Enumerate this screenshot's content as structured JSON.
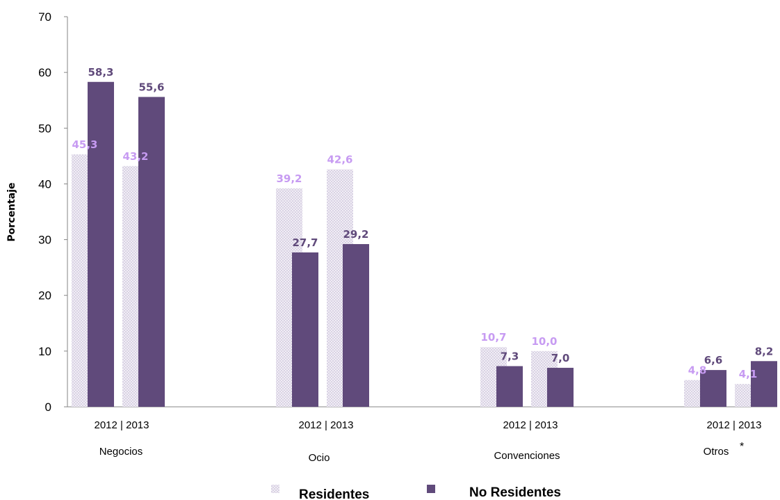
{
  "chart_data": {
    "type": "bar",
    "ylabel": "Porcentaje",
    "ylim": [
      0,
      70
    ],
    "yticks": [
      0,
      10,
      20,
      30,
      40,
      50,
      60,
      70
    ],
    "categories": [
      "Negocios",
      "Ocio",
      "Convenciones",
      "Otros"
    ],
    "category_footnote": {
      "Otros": "*"
    },
    "years": [
      "2012",
      "2013"
    ],
    "year_separator": "|",
    "series": [
      {
        "name": "Residentes",
        "color": "#e6e1ee",
        "label_color": "#c79bf2",
        "values": {
          "2012": [
            45.3,
            39.2,
            10.7,
            4.8
          ],
          "2013": [
            43.2,
            42.6,
            10.0,
            4.1
          ]
        },
        "labels": {
          "2012": [
            "45,3",
            "39,2",
            "10,7",
            "4,8"
          ],
          "2013": [
            "43,2",
            "42,6",
            "10,0",
            "4,1"
          ]
        }
      },
      {
        "name": "No Residentes",
        "color": "#604a7b",
        "label_color": "#604a7b",
        "values": {
          "2012": [
            58.3,
            27.7,
            7.3,
            6.6
          ],
          "2013": [
            55.6,
            29.2,
            7.0,
            8.2
          ]
        },
        "labels": {
          "2012": [
            "58,3",
            "27,7",
            "7,3",
            "6,6"
          ],
          "2013": [
            "55,6",
            "29,2",
            "7,0",
            "8,2"
          ]
        }
      }
    ],
    "grid": false,
    "legend_position": "bottom"
  }
}
